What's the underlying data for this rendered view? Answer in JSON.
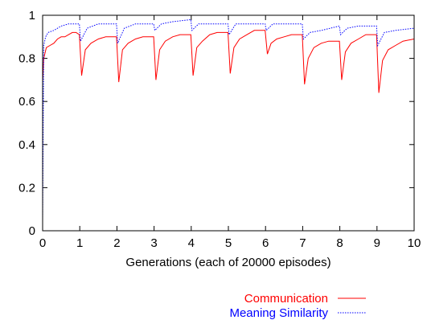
{
  "chart_data": {
    "type": "line",
    "title": "",
    "xlabel": "Generations (each of 20000 episodes)",
    "ylabel": "",
    "xlim": [
      0,
      10
    ],
    "ylim": [
      0,
      1
    ],
    "xticks": [
      "0",
      "1",
      "2",
      "3",
      "4",
      "5",
      "6",
      "7",
      "8",
      "9",
      "10"
    ],
    "yticks": [
      "0",
      "0.2",
      "0.4",
      "0.6",
      "0.8",
      "1"
    ],
    "grid": false,
    "legend_position": "bottom-right",
    "series": [
      {
        "name": "Communication",
        "color": "#ff0000",
        "style": "solid",
        "x": [
          0,
          0.03,
          0.1,
          0.2,
          0.3,
          0.4,
          0.5,
          0.6,
          0.7,
          0.8,
          0.9,
          0.99,
          1.05,
          1.15,
          1.3,
          1.5,
          1.7,
          1.99,
          2.05,
          2.15,
          2.3,
          2.5,
          2.7,
          2.99,
          3.05,
          3.15,
          3.3,
          3.5,
          3.7,
          3.99,
          4.05,
          4.15,
          4.3,
          4.5,
          4.7,
          4.99,
          5.05,
          5.15,
          5.3,
          5.5,
          5.7,
          5.99,
          6.05,
          6.15,
          6.3,
          6.5,
          6.7,
          6.99,
          7.05,
          7.15,
          7.3,
          7.5,
          7.7,
          7.99,
          8.05,
          8.15,
          8.3,
          8.5,
          8.7,
          8.99,
          9.05,
          9.15,
          9.3,
          9.5,
          9.7,
          10
        ],
        "y": [
          0.69,
          0.8,
          0.85,
          0.86,
          0.87,
          0.89,
          0.9,
          0.9,
          0.91,
          0.92,
          0.92,
          0.91,
          0.72,
          0.84,
          0.87,
          0.89,
          0.9,
          0.9,
          0.69,
          0.84,
          0.87,
          0.89,
          0.9,
          0.9,
          0.7,
          0.84,
          0.88,
          0.9,
          0.91,
          0.91,
          0.72,
          0.85,
          0.88,
          0.91,
          0.92,
          0.92,
          0.73,
          0.85,
          0.89,
          0.91,
          0.93,
          0.93,
          0.82,
          0.87,
          0.89,
          0.9,
          0.91,
          0.91,
          0.68,
          0.8,
          0.85,
          0.87,
          0.88,
          0.88,
          0.7,
          0.83,
          0.87,
          0.89,
          0.91,
          0.91,
          0.64,
          0.79,
          0.84,
          0.86,
          0.88,
          0.89
        ]
      },
      {
        "name": "Meaning Similarity",
        "color": "#0000ff",
        "style": "dotted",
        "x": [
          0,
          0.03,
          0.08,
          0.15,
          0.3,
          0.5,
          0.7,
          0.99,
          1.02,
          1.2,
          1.5,
          1.99,
          2.02,
          2.2,
          2.5,
          2.99,
          3.02,
          3.2,
          3.5,
          3.99,
          4.02,
          4.2,
          4.5,
          4.99,
          5.02,
          5.2,
          5.5,
          5.99,
          6.02,
          6.2,
          6.5,
          6.99,
          7.02,
          7.2,
          7.5,
          7.99,
          8.02,
          8.2,
          8.5,
          8.99,
          9.02,
          9.2,
          9.5,
          10
        ],
        "y": [
          0.04,
          0.86,
          0.9,
          0.92,
          0.93,
          0.95,
          0.96,
          0.96,
          0.88,
          0.94,
          0.96,
          0.96,
          0.87,
          0.94,
          0.96,
          0.96,
          0.93,
          0.96,
          0.97,
          0.98,
          0.93,
          0.96,
          0.96,
          0.96,
          0.91,
          0.96,
          0.96,
          0.96,
          0.93,
          0.96,
          0.96,
          0.96,
          0.89,
          0.92,
          0.93,
          0.95,
          0.91,
          0.94,
          0.95,
          0.95,
          0.86,
          0.92,
          0.93,
          0.94
        ]
      }
    ]
  }
}
